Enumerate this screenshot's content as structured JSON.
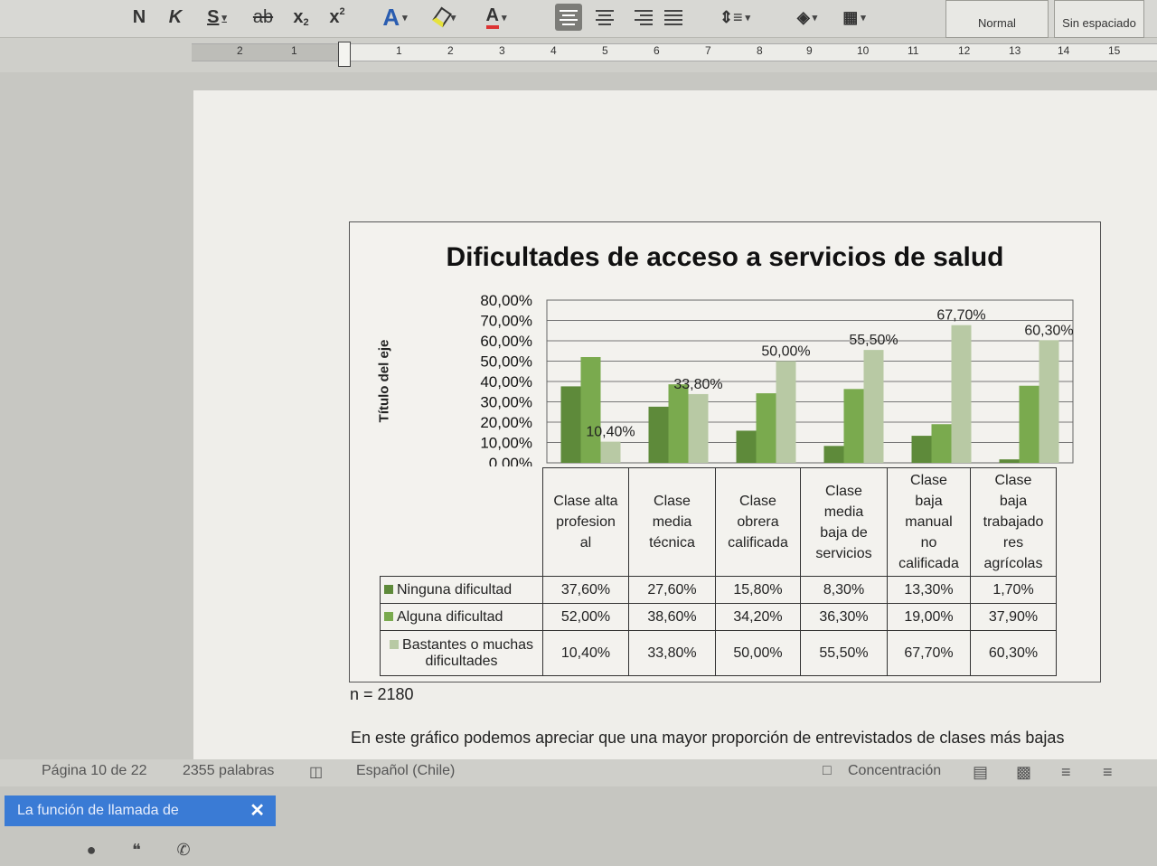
{
  "ribbon": {
    "bold": "N",
    "italic": "K",
    "underline": "S",
    "strikethrough": "ab",
    "subscript": "x",
    "subscript_mark": "2",
    "superscript": "x",
    "superscript_mark": "2",
    "font_color_letter": "A",
    "text_effects_letter": "A",
    "styles": [
      "Normal",
      "Sin espaciado"
    ]
  },
  "ruler": {
    "numbers": [
      "2",
      "1",
      "1",
      "2",
      "3",
      "4",
      "5",
      "6",
      "7",
      "8",
      "9",
      "10",
      "11",
      "12",
      "13",
      "14",
      "15"
    ]
  },
  "chart_data": {
    "type": "bar",
    "title": "Dificultades de acceso a servicios de salud",
    "ylabel": "Título del eje",
    "xlabel": "",
    "ylim": [
      0,
      0.8
    ],
    "yticks": [
      "80,00%",
      "70,00%",
      "60,00%",
      "50,00%",
      "40,00%",
      "30,00%",
      "20,00%",
      "10,00%",
      "0,00%"
    ],
    "categories": [
      [
        "Clase alta",
        "profesion",
        "al"
      ],
      [
        "Clase",
        "media",
        "técnica"
      ],
      [
        "Clase",
        "obrera",
        "calificada"
      ],
      [
        "Clase",
        "media",
        "baja de",
        "servicios"
      ],
      [
        "Clase",
        "baja",
        "manual",
        "no",
        "calificada"
      ],
      [
        "Clase",
        "baja",
        "trabajado",
        "res",
        "agrícolas"
      ]
    ],
    "series": [
      {
        "name": "Ninguna dificultad",
        "color": "#5e8a3a",
        "values": [
          0.376,
          0.276,
          0.158,
          0.083,
          0.133,
          0.017
        ],
        "labels": [
          "37,60%",
          "27,60%",
          "15,80%",
          "8,30%",
          "13,30%",
          "1,70%"
        ]
      },
      {
        "name": "Alguna dificultad",
        "color": "#7aaa4e",
        "values": [
          0.52,
          0.386,
          0.342,
          0.363,
          0.19,
          0.379
        ],
        "labels": [
          "52,00%",
          "38,60%",
          "34,20%",
          "36,30%",
          "19,00%",
          "37,90%"
        ]
      },
      {
        "name": "Bastantes o muchas dificultades",
        "name_lines": [
          "Bastantes o muchas",
          "dificultades"
        ],
        "color": "#b8c9a4",
        "values": [
          0.104,
          0.338,
          0.5,
          0.555,
          0.677,
          0.603
        ],
        "labels": [
          "10,40%",
          "33,80%",
          "50,00%",
          "55,50%",
          "67,70%",
          "60,30%"
        ]
      }
    ],
    "data_labels_shown": [
      "10,40%",
      "33,80%",
      "50,00%",
      "55,50%",
      "67,70%",
      "60,30%"
    ],
    "grid": true,
    "legend": "data-table"
  },
  "note": "n = 2180",
  "body_text": "En este gráfico podemos apreciar que una mayor proporción de entrevistados de clases más bajas",
  "status": {
    "page": "Página 10 de 22",
    "words": "2355 palabras",
    "language": "Español (Chile)",
    "focus": "Concentración"
  },
  "notification": {
    "text": "La función de llamada de",
    "close": "✕"
  }
}
